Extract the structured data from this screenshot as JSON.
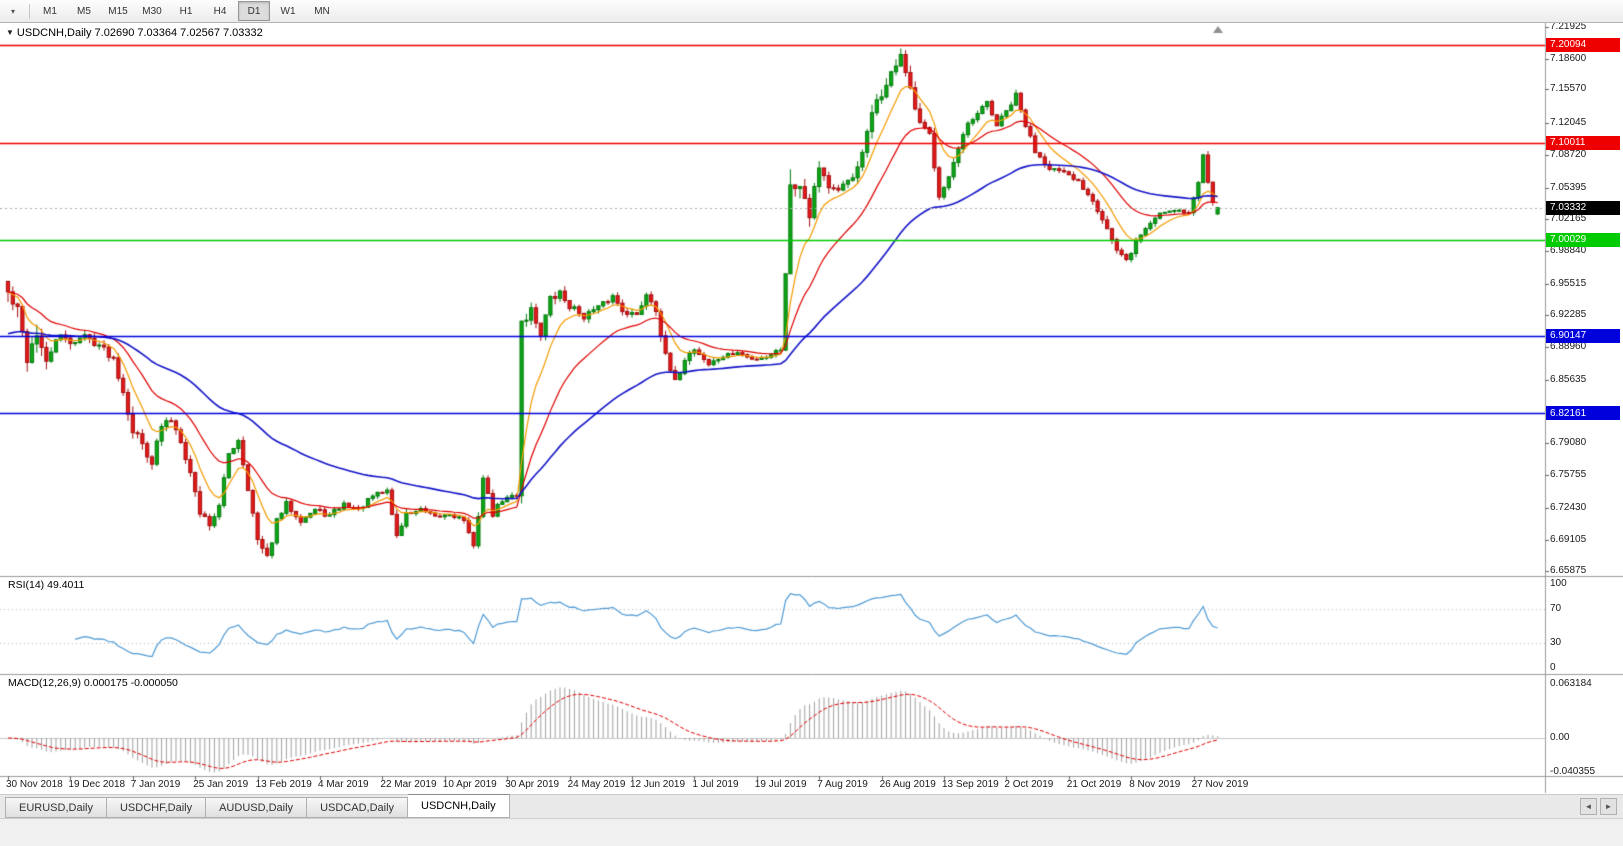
{
  "toolbar": {
    "chart_menu_icon": "▾",
    "periods": [
      "M1",
      "M5",
      "M15",
      "M30",
      "H1",
      "H4",
      "D1",
      "W1",
      "MN"
    ],
    "active_period": "D1"
  },
  "chart": {
    "collapse_icon": "▼",
    "title_symbol": "USDCNH,Daily",
    "title_ohlc": "7.02690 7.03364 7.02567 7.03332"
  },
  "rsi_panel": {
    "label_name": "RSI(14)",
    "label_value": "49.4011",
    "axis_labels": [
      "100",
      "70",
      "30",
      "0"
    ]
  },
  "macd_panel": {
    "label_name": "MACD(12,26,9)",
    "label_value": "0.000175 -0.000050",
    "axis_labels": [
      "0.063184",
      "0.00",
      "-0.040355"
    ]
  },
  "price_axis": {
    "labels": [
      "7.21925",
      "7.18600",
      "7.15570",
      "7.12045",
      "7.08720",
      "7.05395",
      "7.02165",
      "6.98840",
      "6.95515",
      "6.92285",
      "6.88960",
      "6.85635",
      "6.79080",
      "6.75755",
      "6.72430",
      "6.69105",
      "6.65875"
    ],
    "badges": [
      {
        "value": "7.20094",
        "bg": "#ee0000"
      },
      {
        "value": "7.10011",
        "bg": "#ee0000"
      },
      {
        "value": "7.03332",
        "bg": "#000000"
      },
      {
        "value": "7.00029",
        "bg": "#00ca00"
      },
      {
        "value": "6.90147",
        "bg": "#0000dd"
      },
      {
        "value": "6.82161",
        "bg": "#0000dd"
      }
    ]
  },
  "time_axis": {
    "labels": [
      "30 Nov 2018",
      "19 Dec 2018",
      "7 Jan 2019",
      "25 Jan 2019",
      "13 Feb 2019",
      "4 Mar 2019",
      "22 Mar 2019",
      "10 Apr 2019",
      "30 Apr 2019",
      "24 May 2019",
      "12 Jun 2019",
      "1 Jul 2019",
      "19 Jul 2019",
      "7 Aug 2019",
      "26 Aug 2019",
      "13 Sep 2019",
      "2 Oct 2019",
      "21 Oct 2019",
      "8 Nov 2019",
      "27 Nov 2019"
    ],
    "bars_per_label": 13
  },
  "tabs": {
    "items": [
      {
        "label": "EURUSD,Daily",
        "active": false
      },
      {
        "label": "USDCHF,Daily",
        "active": false
      },
      {
        "label": "AUDUSD,Daily",
        "active": false
      },
      {
        "label": "USDCAD,Daily",
        "active": false
      },
      {
        "label": "USDCNH,Daily",
        "active": true
      }
    ],
    "scroll_left_icon": "◄",
    "scroll_right_icon": "►"
  },
  "chart_data": {
    "type": "candlestick",
    "symbol": "USDCNH",
    "timeframe": "Daily",
    "current_bar": {
      "open": 7.0269,
      "high": 7.03364,
      "low": 7.02567,
      "close": 7.03332
    },
    "bar_count": 253,
    "price_range_top": 7.2245,
    "price_range_bottom": 6.654,
    "levels": [
      {
        "price": 7.20094,
        "color": "#ee0000"
      },
      {
        "price": 7.10011,
        "color": "#ee0000"
      },
      {
        "price": 7.00029,
        "color": "#00ca00"
      },
      {
        "price": 6.90147,
        "color": "#0000dd"
      },
      {
        "price": 6.82161,
        "color": "#0000dd"
      }
    ],
    "current_price_line": {
      "price": 7.03332,
      "color": "#aaaaaa"
    },
    "moving_averages": [
      {
        "period": 8,
        "color": "#f59b00"
      },
      {
        "period": 20,
        "color": "#e00000"
      },
      {
        "period": 55,
        "color": "#1414c8"
      }
    ],
    "rsi": {
      "period": 14,
      "current": 49.4011,
      "levels": [
        70,
        30
      ]
    },
    "macd": {
      "fast": 12,
      "slow": 26,
      "signal": 9,
      "current": 0.000175,
      "current_signal": -5e-05,
      "scale_max": 0.063184,
      "scale_min": -0.040355
    },
    "candle_colors": {
      "bull": "#0ca816",
      "bull_border": "#067a0e",
      "bear": "#e51a1a",
      "bear_border": "#a50f0f"
    },
    "close_anchors": [
      [
        0,
        6.945,
        0.03
      ],
      [
        2,
        6.925,
        0.034
      ],
      [
        4,
        6.88,
        0.034
      ],
      [
        6,
        6.905,
        0.03
      ],
      [
        8,
        6.87,
        0.026
      ],
      [
        10,
        6.9,
        0.02
      ],
      [
        13,
        6.895,
        0.016
      ],
      [
        16,
        6.901,
        0.014
      ],
      [
        19,
        6.892,
        0.013
      ],
      [
        22,
        6.878,
        0.014
      ],
      [
        24,
        6.845,
        0.016
      ],
      [
        26,
        6.805,
        0.02
      ],
      [
        28,
        6.79,
        0.018
      ],
      [
        30,
        6.772,
        0.016
      ],
      [
        32,
        6.808,
        0.015
      ],
      [
        34,
        6.815,
        0.013
      ],
      [
        36,
        6.795,
        0.014
      ],
      [
        38,
        6.76,
        0.015
      ],
      [
        40,
        6.72,
        0.016
      ],
      [
        42,
        6.708,
        0.014
      ],
      [
        44,
        6.725,
        0.013
      ],
      [
        46,
        6.78,
        0.014
      ],
      [
        48,
        6.795,
        0.013
      ],
      [
        50,
        6.745,
        0.013
      ],
      [
        52,
        6.69,
        0.016
      ],
      [
        54,
        6.672,
        0.014
      ],
      [
        56,
        6.71,
        0.012
      ],
      [
        58,
        6.728,
        0.011
      ],
      [
        61,
        6.712,
        0.01
      ],
      [
        64,
        6.722,
        0.01
      ],
      [
        67,
        6.716,
        0.01
      ],
      [
        70,
        6.728,
        0.009
      ],
      [
        73,
        6.722,
        0.009
      ],
      [
        76,
        6.736,
        0.009
      ],
      [
        79,
        6.742,
        0.01
      ],
      [
        81,
        6.695,
        0.013
      ],
      [
        83,
        6.718,
        0.01
      ],
      [
        86,
        6.722,
        0.008
      ],
      [
        89,
        6.714,
        0.008
      ],
      [
        92,
        6.718,
        0.008
      ],
      [
        95,
        6.712,
        0.008
      ],
      [
        97,
        6.682,
        0.014
      ],
      [
        99,
        6.755,
        0.016
      ],
      [
        101,
        6.718,
        0.012
      ],
      [
        103,
        6.732,
        0.009
      ],
      [
        106,
        6.738,
        0.009
      ],
      [
        107,
        6.918,
        0.034
      ],
      [
        109,
        6.928,
        0.026
      ],
      [
        111,
        6.905,
        0.02
      ],
      [
        113,
        6.938,
        0.018
      ],
      [
        115,
        6.945,
        0.015
      ],
      [
        117,
        6.932,
        0.013
      ],
      [
        120,
        6.922,
        0.012
      ],
      [
        123,
        6.93,
        0.011
      ],
      [
        126,
        6.942,
        0.011
      ],
      [
        128,
        6.928,
        0.01
      ],
      [
        131,
        6.922,
        0.011
      ],
      [
        133,
        6.945,
        0.012
      ],
      [
        135,
        6.93,
        0.014
      ],
      [
        137,
        6.878,
        0.02
      ],
      [
        139,
        6.852,
        0.016
      ],
      [
        141,
        6.878,
        0.012
      ],
      [
        143,
        6.888,
        0.011
      ],
      [
        146,
        6.872,
        0.009
      ],
      [
        149,
        6.88,
        0.008
      ],
      [
        152,
        6.884,
        0.007
      ],
      [
        155,
        6.877,
        0.007
      ],
      [
        158,
        6.88,
        0.007
      ],
      [
        161,
        6.888,
        0.009
      ],
      [
        163,
        7.052,
        0.044
      ],
      [
        165,
        7.062,
        0.034
      ],
      [
        167,
        7.03,
        0.028
      ],
      [
        169,
        7.078,
        0.024
      ],
      [
        171,
        7.055,
        0.018
      ],
      [
        173,
        7.048,
        0.015
      ],
      [
        175,
        7.062,
        0.015
      ],
      [
        177,
        7.072,
        0.016
      ],
      [
        179,
        7.108,
        0.02
      ],
      [
        181,
        7.145,
        0.022
      ],
      [
        183,
        7.158,
        0.02
      ],
      [
        185,
        7.182,
        0.018
      ],
      [
        186,
        7.192,
        0.016
      ],
      [
        188,
        7.152,
        0.018
      ],
      [
        190,
        7.118,
        0.016
      ],
      [
        192,
        7.108,
        0.014
      ],
      [
        194,
        7.048,
        0.016
      ],
      [
        196,
        7.065,
        0.013
      ],
      [
        198,
        7.092,
        0.013
      ],
      [
        200,
        7.118,
        0.013
      ],
      [
        202,
        7.128,
        0.012
      ],
      [
        204,
        7.142,
        0.013
      ],
      [
        206,
        7.118,
        0.012
      ],
      [
        208,
        7.132,
        0.012
      ],
      [
        210,
        7.148,
        0.013
      ],
      [
        212,
        7.118,
        0.012
      ],
      [
        214,
        7.092,
        0.011
      ],
      [
        217,
        7.075,
        0.01
      ],
      [
        220,
        7.068,
        0.009
      ],
      [
        223,
        7.06,
        0.009
      ],
      [
        226,
        7.042,
        0.01
      ],
      [
        229,
        7.012,
        0.012
      ],
      [
        231,
        6.988,
        0.013
      ],
      [
        233,
        6.978,
        0.012
      ],
      [
        235,
        6.998,
        0.011
      ],
      [
        237,
        7.012,
        0.01
      ],
      [
        240,
        7.028,
        0.009
      ],
      [
        243,
        7.032,
        0.008
      ],
      [
        246,
        7.028,
        0.008
      ],
      [
        248,
        7.058,
        0.014
      ],
      [
        249,
        7.088,
        0.013
      ],
      [
        250,
        7.062,
        0.012
      ],
      [
        251,
        7.042,
        0.01
      ],
      [
        252,
        7.0333,
        0.008
      ]
    ]
  }
}
